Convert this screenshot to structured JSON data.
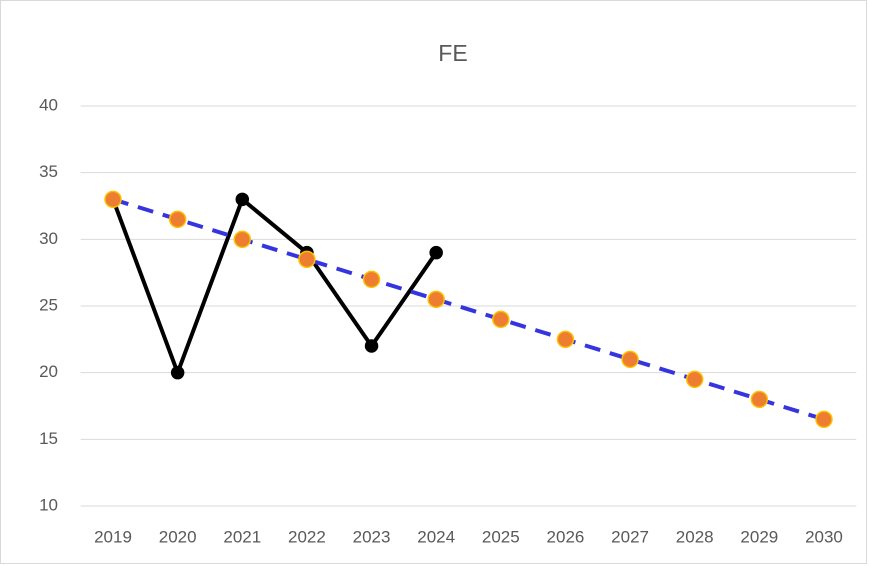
{
  "chart_data": {
    "type": "line",
    "title": "FE",
    "categories": [
      "2019",
      "2020",
      "2021",
      "2022",
      "2023",
      "2024",
      "2025",
      "2026",
      "2027",
      "2028",
      "2029",
      "2030"
    ],
    "series": [
      {
        "color": "#000000",
        "marker_color": "#000000",
        "marker_edge": "#000000",
        "dashed": false,
        "values": [
          33,
          20,
          33,
          29,
          22,
          29,
          null,
          null,
          null,
          null,
          null,
          null
        ]
      },
      {
        "color": "#3535e0",
        "marker_color": "#ed7d31",
        "marker_edge": "#ffc000",
        "dashed": true,
        "values": [
          33,
          31.5,
          30,
          28.5,
          27,
          25.5,
          24,
          22.5,
          21,
          19.5,
          18,
          16.5
        ]
      }
    ],
    "ylim": [
      10,
      40
    ],
    "yticks": [
      10,
      15,
      20,
      25,
      30,
      35,
      40
    ],
    "grid": true
  }
}
